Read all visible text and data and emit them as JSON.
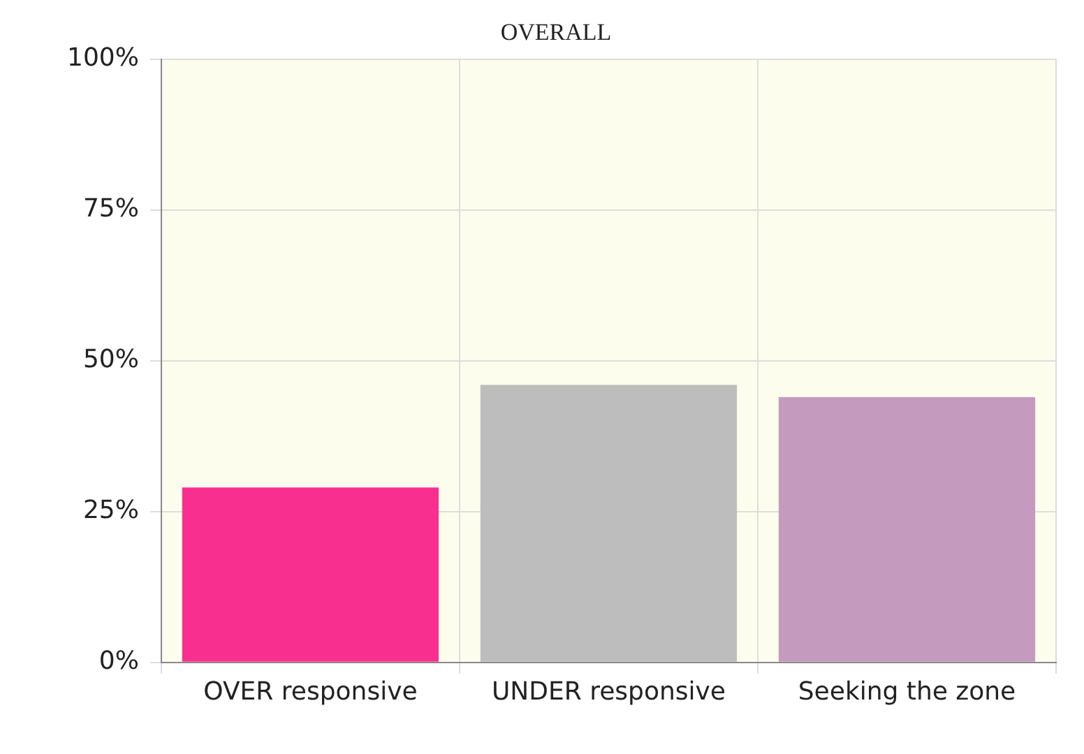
{
  "chart_data": {
    "type": "bar",
    "title": "OVERALL",
    "categories": [
      "OVER responsive",
      "UNDER responsive",
      "Seeking the zone"
    ],
    "values": [
      29,
      46,
      44
    ],
    "colors": [
      "#f92f8f",
      "#bdbdbd",
      "#c59abf"
    ],
    "ylim": [
      0,
      100
    ],
    "yticks": [
      {
        "value": 0,
        "label": "0%"
      },
      {
        "value": 25,
        "label": "25%"
      },
      {
        "value": 50,
        "label": "50%"
      },
      {
        "value": 75,
        "label": "75%"
      },
      {
        "value": 100,
        "label": "100%"
      }
    ],
    "grid": true,
    "legend": false
  }
}
